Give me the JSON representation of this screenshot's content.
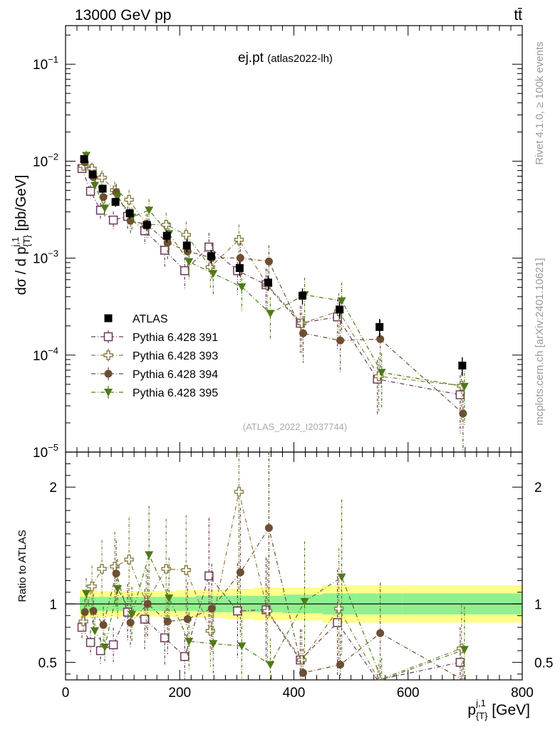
{
  "header": {
    "beam": "13000 GeV pp",
    "process": "tt̄"
  },
  "side_labels": {
    "rivet": "Rivet 4.1.0, ≥ 100k events",
    "mcplots": "mcplots.cern.ch [arXiv:2401.10621]"
  },
  "legend": {
    "entries": [
      "ATLAS",
      "Pythia 6.428 391",
      "Pythia 6.428 393",
      "Pythia 6.428 394",
      "Pythia 6.428 395"
    ]
  },
  "chart_data": {
    "type": "scatter",
    "title": "ej.pt",
    "title_note": "(atlas2022-lh)",
    "analysis": "(ATLAS_2022_I2037744)",
    "xlabel": {
      "main": "p",
      "sup": "j,1",
      "sub": "{T}",
      "unit": " [GeV]"
    },
    "ylabel": {
      "main": "dσ / d p",
      "sup": "j,1",
      "sub": "{T}",
      "unit": " [pb/GeV]"
    },
    "ratio_ylabel": "Ratio to ATLAS",
    "xlim": [
      0,
      800
    ],
    "ylim": [
      1e-05,
      0.25
    ],
    "ratio_ylim": [
      0.35,
      2.3
    ],
    "x_ticks": [
      "0",
      "200",
      "400",
      "600",
      "800"
    ],
    "y_ticks": [
      {
        "base": "10",
        "exp": "−1"
      },
      {
        "base": "10",
        "exp": "−2"
      },
      {
        "base": "10",
        "exp": "−3"
      },
      {
        "base": "10",
        "exp": "−4"
      },
      {
        "base": "10",
        "exp": "−5"
      }
    ],
    "ratio_ticks": [
      "2",
      "1",
      "0.5"
    ],
    "bins": [
      [
        25,
        40
      ],
      [
        40,
        55
      ],
      [
        55,
        75
      ],
      [
        75,
        100
      ],
      [
        100,
        125
      ],
      [
        125,
        160
      ],
      [
        160,
        195
      ],
      [
        195,
        230
      ],
      [
        230,
        280
      ],
      [
        280,
        330
      ],
      [
        330,
        380
      ],
      [
        380,
        450
      ],
      [
        450,
        510
      ],
      [
        510,
        590
      ],
      [
        590,
        800
      ]
    ],
    "x": [
      32.5,
      47.5,
      65,
      87.5,
      112.5,
      142.5,
      177.5,
      212.5,
      255,
      305,
      355,
      415,
      480,
      550,
      695
    ],
    "data": {
      "name": "ATLAS",
      "values": [
        0.0105,
        0.0073,
        0.0052,
        0.0038,
        0.0029,
        0.0022,
        0.0017,
        0.00135,
        0.00105,
        0.00079,
        0.00056,
        0.00041,
        0.000295,
        0.000195,
        7.8e-05
      ],
      "band_inner": [
        0.06,
        0.06,
        0.06,
        0.06,
        0.06,
        0.06,
        0.06,
        0.06,
        0.07,
        0.07,
        0.07,
        0.08,
        0.09,
        0.09,
        0.09
      ],
      "band_outer": [
        0.12,
        0.12,
        0.11,
        0.11,
        0.11,
        0.11,
        0.11,
        0.12,
        0.12,
        0.13,
        0.14,
        0.14,
        0.16,
        0.16,
        0.16
      ]
    },
    "series": [
      {
        "name": "Pythia 6.428 391",
        "color": "#6b3a5c",
        "marker": "open-square",
        "ratio": [
          0.8,
          0.67,
          0.6,
          0.65,
          0.93,
          0.87,
          0.71,
          0.55,
          1.24,
          0.94,
          0.95,
          0.52,
          0.84,
          0.29,
          0.5
        ]
      },
      {
        "name": "Pythia 6.428 393",
        "color": "#8a7d45",
        "marker": "open-cross",
        "ratio": [
          0.85,
          1.15,
          1.3,
          1.32,
          1.38,
          1.01,
          1.3,
          1.29,
          0.77,
          1.96,
          0.94,
          0.52,
          0.96,
          0.31,
          0.62
        ]
      },
      {
        "name": "Pythia 6.428 394",
        "color": "#6e4e32",
        "marker": "filled-circle",
        "ratio": [
          0.93,
          0.94,
          0.82,
          1.26,
          0.84,
          1.0,
          0.85,
          0.87,
          0.96,
          1.27,
          1.65,
          0.41,
          0.48,
          0.75,
          0.32
        ]
      },
      {
        "name": "Pythia 6.428 395",
        "color": "#4f7a16",
        "marker": "filled-triangle",
        "ratio": [
          1.09,
          0.77,
          0.63,
          1.13,
          0.91,
          1.42,
          1.05,
          0.68,
          0.66,
          0.64,
          0.48,
          1.02,
          1.23,
          0.34,
          0.61
        ]
      }
    ]
  }
}
